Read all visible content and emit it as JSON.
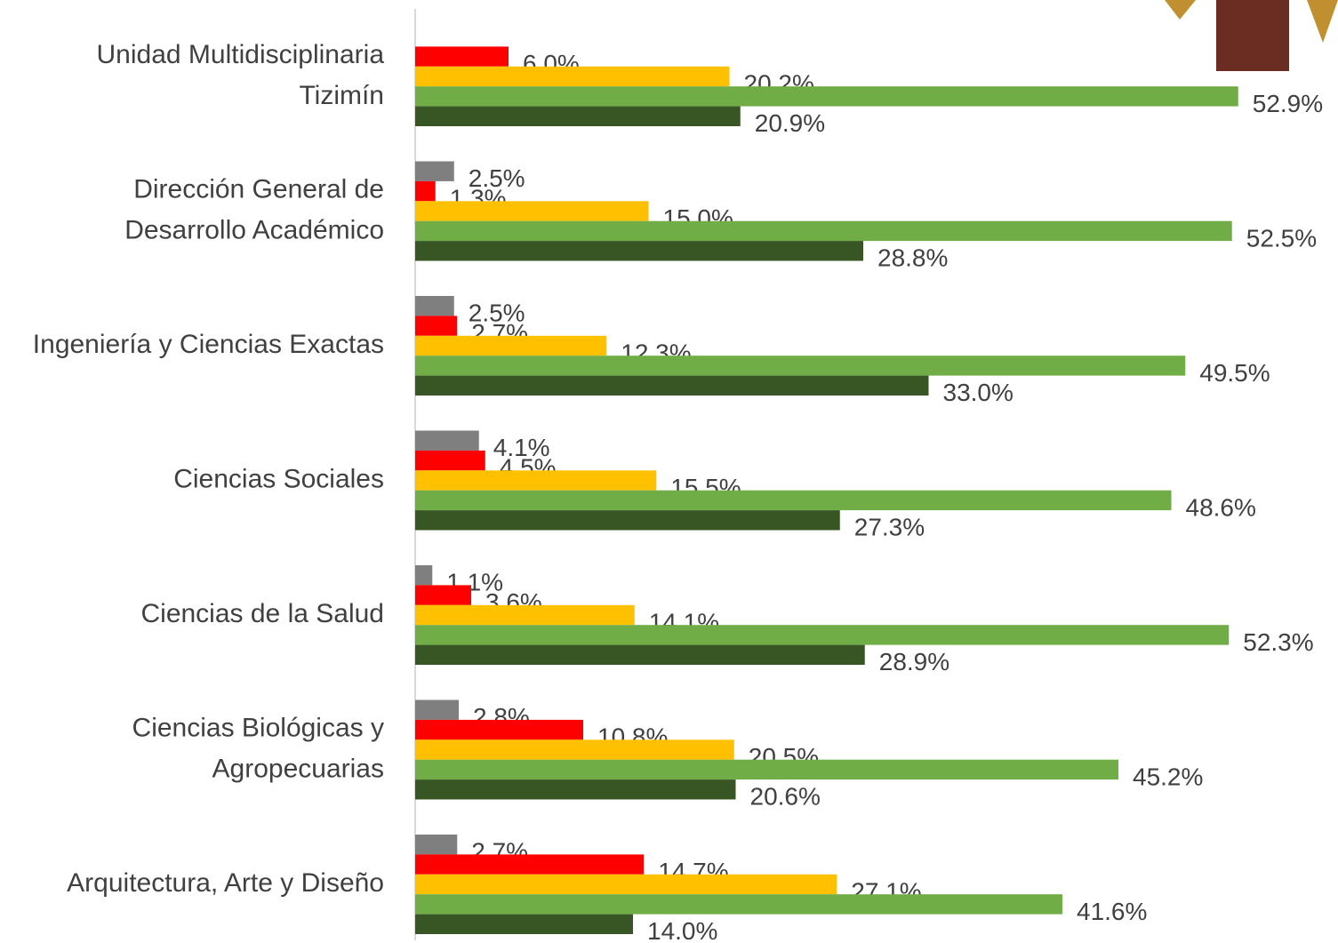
{
  "chart_data": {
    "type": "bar",
    "orientation": "horizontal",
    "categories": [
      "Unidad Multidisciplinaria\nTizimín",
      "Dirección General de\nDesarrollo Académico",
      "Ingeniería y Ciencias Exactas",
      "Ciencias Sociales",
      "Ciencias de la Salud",
      "Ciencias Biológicas y\nAgropecuarias",
      "Arquitectura, Arte y Diseño"
    ],
    "series": [
      {
        "color": "#7f7f7f",
        "values": [
          null,
          2.5,
          2.5,
          4.1,
          1.1,
          2.8,
          2.7
        ],
        "value_labels": [
          null,
          "2.5%",
          "2.5%",
          "4.1%",
          "1.1%",
          "2.8%",
          "2.7%"
        ]
      },
      {
        "color": "#ff0000",
        "values": [
          6.0,
          1.3,
          2.7,
          4.5,
          3.6,
          10.8,
          14.7
        ],
        "value_labels": [
          "6.0%",
          "1.3%",
          "2.7%",
          "4.5%",
          "3.6%",
          "10.8%",
          "14.7%"
        ]
      },
      {
        "color": "#ffc000",
        "values": [
          20.2,
          15.0,
          12.3,
          15.5,
          14.1,
          20.5,
          27.1
        ],
        "value_labels": [
          "20.2%",
          "15.0%",
          "12.3%",
          "15.5%",
          "14.1%",
          "20.5%",
          "27.1%"
        ]
      },
      {
        "color": "#70ad47",
        "values": [
          52.9,
          52.5,
          49.5,
          48.6,
          52.3,
          45.2,
          41.6
        ],
        "value_labels": [
          "52.9%",
          "52.5%",
          "49.5%",
          "48.6%",
          "52.3%",
          "45.2%",
          "41.6%"
        ]
      },
      {
        "color": "#375623",
        "values": [
          20.9,
          28.8,
          33.0,
          27.3,
          28.9,
          20.6,
          14.0
        ],
        "value_labels": [
          "20.9%",
          "28.8%",
          "33.0%",
          "27.3%",
          "28.9%",
          "20.6%",
          "14.0%"
        ]
      }
    ],
    "xlim": [
      0,
      59
    ]
  }
}
